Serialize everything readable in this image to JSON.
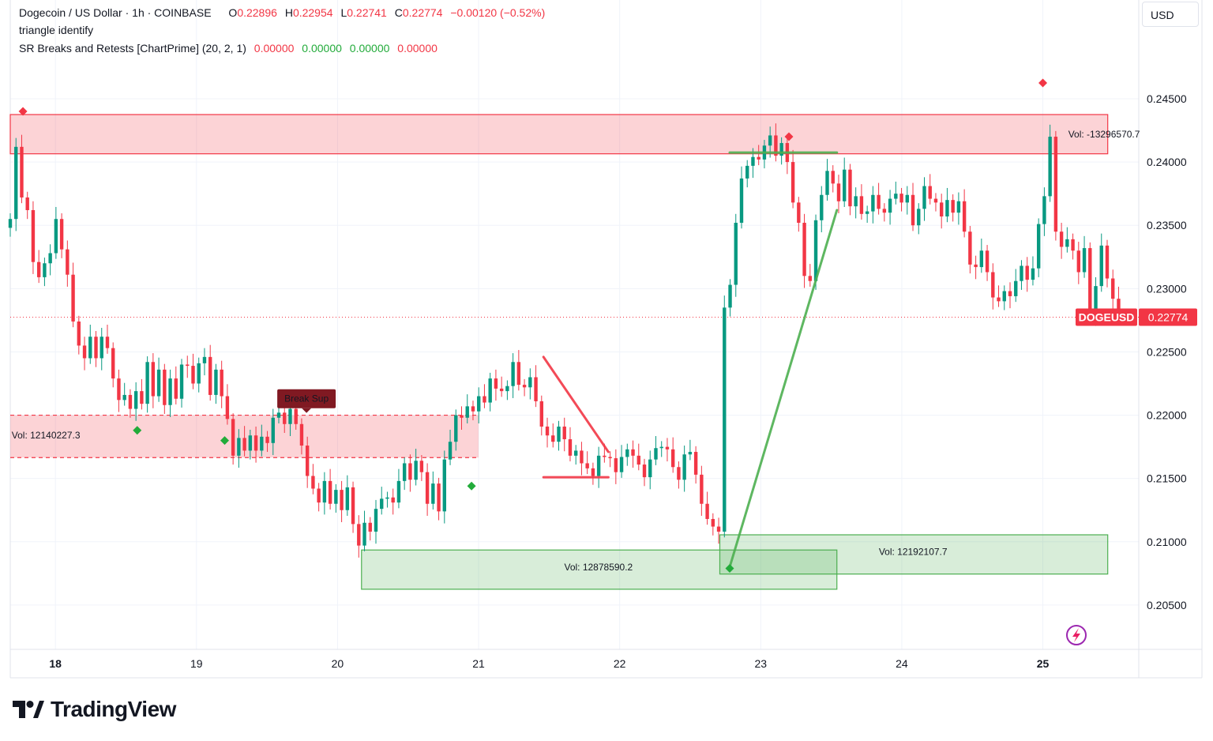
{
  "legend": {
    "symbol": "Dogecoin / US Dollar · 1h · COINBASE",
    "o_label": "O",
    "o_value": "0.22896",
    "h_label": "H",
    "h_value": "0.22954",
    "l_label": "L",
    "l_value": "0.22741",
    "c_label": "C",
    "c_value": "0.22774",
    "change": "−0.00120 (−0.52%)",
    "indicator1": "triangle identify",
    "indicator2": "SR Breaks and Retests [ChartPrime] (20, 2, 1)",
    "ind2_values": [
      "0.00000",
      "0.00000",
      "0.00000",
      "0.00000"
    ]
  },
  "currency_button": "USD",
  "brand": "TradingView",
  "colors": {
    "up": "#089981",
    "down": "#f23645",
    "green_line": "#4caf50",
    "zone_red": "#f23645",
    "zone_green": "#4caf50",
    "label_dark_red": "#801922"
  },
  "chart_data": {
    "type": "candlestick",
    "symbol_badge": "DOGEUSD",
    "last_price": "0.22774",
    "last_price_value": 0.22774,
    "ylim": [
      0.2015,
      0.2528
    ],
    "y_ticks": [
      "0.24500",
      "0.24000",
      "0.23500",
      "0.23000",
      "0.22500",
      "0.22000",
      "0.21500",
      "0.21000",
      "0.20500"
    ],
    "x_ticks": [
      {
        "label": "18",
        "day": 18,
        "bold": true
      },
      {
        "label": "19",
        "day": 19,
        "bold": false
      },
      {
        "label": "20",
        "day": 20,
        "bold": false
      },
      {
        "label": "21",
        "day": 21,
        "bold": false
      },
      {
        "label": "22",
        "day": 22,
        "bold": false
      },
      {
        "label": "23",
        "day": 23,
        "bold": false
      },
      {
        "label": "24",
        "day": 24,
        "bold": false
      },
      {
        "label": "25",
        "day": 25,
        "bold": true
      }
    ],
    "candle_start_day": 17.68,
    "candle_step_days": 0.0405,
    "closes": [
      0.2355,
      0.2412,
      0.2372,
      0.2362,
      0.2321,
      0.2309,
      0.232,
      0.2328,
      0.2355,
      0.2331,
      0.2311,
      0.2274,
      0.2255,
      0.2245,
      0.2262,
      0.2245,
      0.2262,
      0.2253,
      0.2229,
      0.2212,
      0.2216,
      0.2205,
      0.2219,
      0.2209,
      0.2242,
      0.2215,
      0.2236,
      0.2208,
      0.2229,
      0.2213,
      0.224,
      0.2239,
      0.2225,
      0.2241,
      0.2246,
      0.2216,
      0.2236,
      0.2215,
      0.2197,
      0.2168,
      0.2182,
      0.2172,
      0.2184,
      0.2172,
      0.2183,
      0.2178,
      0.2198,
      0.2202,
      0.2193,
      0.2205,
      0.2193,
      0.2176,
      0.2152,
      0.2142,
      0.2131,
      0.2148,
      0.213,
      0.2141,
      0.2125,
      0.2143,
      0.2114,
      0.2097,
      0.2115,
      0.2108,
      0.2126,
      0.2134,
      0.2135,
      0.2131,
      0.2148,
      0.2162,
      0.2149,
      0.2164,
      0.2155,
      0.213,
      0.2146,
      0.2124,
      0.2165,
      0.2179,
      0.22,
      0.2198,
      0.2207,
      0.2203,
      0.2215,
      0.221,
      0.2229,
      0.2221,
      0.2219,
      0.2223,
      0.2242,
      0.2224,
      0.2222,
      0.223,
      0.2211,
      0.2191,
      0.2184,
      0.2179,
      0.2191,
      0.2181,
      0.2168,
      0.2172,
      0.2162,
      0.2158,
      0.2152,
      0.2168,
      0.2167,
      0.2166,
      0.2155,
      0.2167,
      0.2173,
      0.2168,
      0.2161,
      0.2151,
      0.2165,
      0.2174,
      0.2175,
      0.2173,
      0.2159,
      0.2149,
      0.2169,
      0.2171,
      0.2153,
      0.213,
      0.2118,
      0.2112,
      0.2108,
      0.2285,
      0.2303,
      0.2352,
      0.2387,
      0.2397,
      0.2404,
      0.2402,
      0.2413,
      0.2421,
      0.2405,
      0.2415,
      0.24,
      0.2368,
      0.2352,
      0.231,
      0.2306,
      0.2354,
      0.2374,
      0.2393,
      0.2383,
      0.2369,
      0.2394,
      0.2365,
      0.2373,
      0.2359,
      0.2361,
      0.2374,
      0.2363,
      0.236,
      0.2371,
      0.2375,
      0.2368,
      0.2374,
      0.235,
      0.2363,
      0.2381,
      0.2371,
      0.2368,
      0.2357,
      0.237,
      0.236,
      0.2369,
      0.2345,
      0.2319,
      0.2317,
      0.233,
      0.2313,
      0.2293,
      0.229,
      0.2298,
      0.2294,
      0.2306,
      0.2318,
      0.2307,
      0.2316,
      0.2351,
      0.2373,
      0.242,
      0.2345,
      0.2333,
      0.2339,
      0.233,
      0.2313,
      0.2332,
      0.228,
      0.2302,
      0.2334,
      0.2308,
      0.2292,
      0.2277
    ],
    "current_price_line": 0.22774,
    "sr_zones": [
      {
        "kind": "resistance",
        "x0": 17.68,
        "x1": 25.46,
        "y_top": 0.24375,
        "y_bottom": 0.24065,
        "dashed": false
      },
      {
        "kind": "resistance",
        "x0": 17.68,
        "x1": 21.0,
        "y_top": 0.22,
        "y_bottom": 0.21665,
        "dashed": true
      },
      {
        "kind": "support",
        "x0": 20.17,
        "x1": 23.54,
        "y_top": 0.20935,
        "y_bottom": 0.20625,
        "dashed": false
      },
      {
        "kind": "support",
        "x0": 22.71,
        "x1": 25.46,
        "y_top": 0.21055,
        "y_bottom": 0.20745,
        "dashed": false
      }
    ],
    "annotations": [
      {
        "text": "Vol: 12140227.3",
        "x": 17.69,
        "y": 0.2184,
        "anchor": "start"
      },
      {
        "text": "Vol: -13296570.7",
        "x": 25.18,
        "y": 0.2422,
        "anchor": "start"
      },
      {
        "text": "Vol: 12878590.2",
        "x": 21.85,
        "y": 0.208,
        "anchor": "middle"
      },
      {
        "text": "Vol: 12192107.7",
        "x": 24.08,
        "y": 0.2092,
        "anchor": "middle"
      }
    ],
    "break_label": {
      "text": "Break Sup",
      "x": 19.78,
      "y": 0.2213
    },
    "markers": [
      {
        "shape": "diamond",
        "color": "down",
        "x": 17.77,
        "y": 0.244
      },
      {
        "shape": "diamond",
        "color": "down",
        "x": 23.2,
        "y": 0.242
      },
      {
        "shape": "diamond",
        "color": "down",
        "x": 25.0,
        "y": 0.24625
      },
      {
        "shape": "diamond",
        "color": "up",
        "x": 18.58,
        "y": 0.2188
      },
      {
        "shape": "diamond",
        "color": "up",
        "x": 19.2,
        "y": 0.218
      },
      {
        "shape": "diamond",
        "color": "up",
        "x": 20.95,
        "y": 0.2144
      },
      {
        "shape": "diamond",
        "color": "up",
        "x": 22.78,
        "y": 0.2079
      }
    ],
    "lines": [
      {
        "color": "down",
        "x0": 21.46,
        "y0": 0.2246,
        "x1": 21.92,
        "y1": 0.2171
      },
      {
        "color": "down",
        "x0": 21.46,
        "y0": 0.2151,
        "x1": 21.92,
        "y1": 0.2151
      },
      {
        "color": "green",
        "x0": 22.78,
        "y0": 0.208,
        "x1": 23.54,
        "y1": 0.2362
      },
      {
        "color": "green",
        "x0": 22.78,
        "y0": 0.24075,
        "x1": 23.54,
        "y1": 0.24075
      }
    ]
  }
}
